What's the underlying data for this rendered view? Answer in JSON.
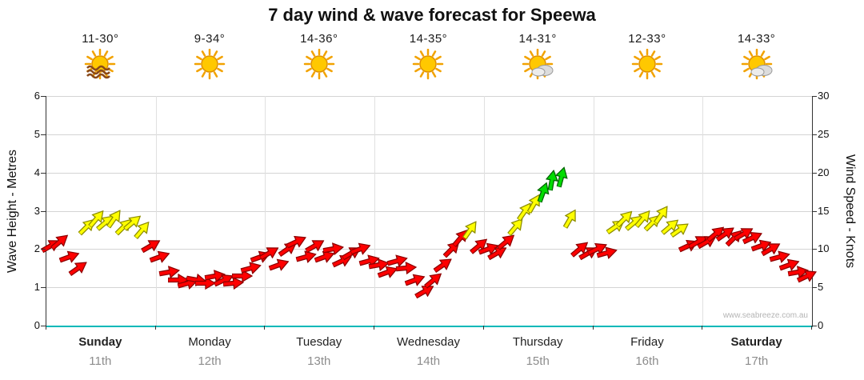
{
  "title": "7 day wind & wave forecast for Speewa",
  "watermark": "www.seabreeze.com.au",
  "axes": {
    "left_label": "Wave Height - Metres",
    "right_label": "Wind Speed - Knots",
    "left_ticks": [
      0,
      1,
      2,
      3,
      4,
      5,
      6
    ],
    "right_ticks": [
      0,
      5,
      10,
      15,
      20,
      25,
      30
    ]
  },
  "days": [
    {
      "name": "Sunday",
      "date": "11th",
      "temp": "11-30°",
      "icon": "sun-waves",
      "weekend": true
    },
    {
      "name": "Monday",
      "date": "12th",
      "temp": "9-34°",
      "icon": "sun",
      "weekend": false
    },
    {
      "name": "Tuesday",
      "date": "13th",
      "temp": "14-36°",
      "icon": "sun",
      "weekend": false
    },
    {
      "name": "Wednesday",
      "date": "14th",
      "temp": "14-35°",
      "icon": "sun",
      "weekend": false
    },
    {
      "name": "Thursday",
      "date": "15th",
      "temp": "14-31°",
      "icon": "sun-cloud",
      "weekend": false
    },
    {
      "name": "Friday",
      "date": "16th",
      "temp": "12-33°",
      "icon": "sun",
      "weekend": false
    },
    {
      "name": "Saturday",
      "date": "17th",
      "temp": "14-33°",
      "icon": "sun-cloud",
      "weekend": true
    }
  ],
  "chart_data": {
    "type": "wind-arrows",
    "title": "7 day wind & wave forecast for Speewa",
    "ylabel_left": "Wave Height - Metres",
    "ylabel_right": "Wind Speed - Knots",
    "ylim_left": [
      0,
      6
    ],
    "ylim_right": [
      0,
      30
    ],
    "grid": true,
    "points_per_day": 12,
    "colors": {
      "r": "#ff0000",
      "y": "#ffff00",
      "g": "#00dd00"
    },
    "stroke": {
      "r": "#8e0000",
      "y": "#8e8e00",
      "g": "#006600"
    },
    "series": [
      {
        "day": "Sunday",
        "knots": [
          10.5,
          11,
          9,
          7.5,
          13,
          14,
          13.5,
          14,
          13,
          13.5,
          12.5,
          10.5
        ],
        "rot": [
          -30,
          -40,
          -20,
          -35,
          -45,
          -50,
          -40,
          -55,
          -45,
          -40,
          -50,
          -30
        ],
        "color": [
          "r",
          "r",
          "r",
          "r",
          "y",
          "y",
          "y",
          "y",
          "y",
          "y",
          "y",
          "r"
        ]
      },
      {
        "day": "Monday",
        "knots": [
          9,
          7,
          6,
          5.5,
          6,
          5.5,
          6.5,
          6,
          5.5,
          6.5,
          7.5,
          9
        ],
        "rot": [
          -20,
          -10,
          0,
          -15,
          10,
          0,
          -10,
          -25,
          -5,
          0,
          -15,
          -20
        ],
        "color": [
          "r",
          "r",
          "r",
          "r",
          "r",
          "r",
          "r",
          "r",
          "r",
          "r",
          "r",
          "r"
        ]
      },
      {
        "day": "Tuesday",
        "knots": [
          9.5,
          8,
          10,
          11,
          9,
          10.5,
          9,
          10,
          8.5,
          9.5,
          10,
          8.5
        ],
        "rot": [
          -30,
          -20,
          -35,
          -25,
          -15,
          -30,
          -20,
          -10,
          -25,
          -30,
          -20,
          -15
        ],
        "color": [
          "r",
          "r",
          "r",
          "r",
          "r",
          "r",
          "r",
          "r",
          "r",
          "r",
          "r",
          "r"
        ]
      },
      {
        "day": "Wednesday",
        "knots": [
          8,
          7,
          8.5,
          7.5,
          6,
          4.5,
          6,
          8,
          10,
          11.5,
          12.5,
          10.5
        ],
        "rot": [
          -10,
          -20,
          -15,
          -5,
          -20,
          -30,
          -40,
          -35,
          -45,
          -50,
          -55,
          -40
        ],
        "color": [
          "r",
          "r",
          "r",
          "r",
          "r",
          "r",
          "r",
          "r",
          "r",
          "r",
          "y",
          "r"
        ]
      },
      {
        "day": "Thursday",
        "knots": [
          10,
          9.5,
          11,
          13,
          15,
          16,
          17.5,
          19,
          19.5,
          14,
          10,
          9.5
        ],
        "rot": [
          -20,
          -30,
          -40,
          -50,
          -55,
          -60,
          -70,
          -80,
          -75,
          -60,
          -40,
          -30
        ],
        "color": [
          "r",
          "r",
          "r",
          "y",
          "y",
          "y",
          "g",
          "g",
          "g",
          "y",
          "r",
          "r"
        ]
      },
      {
        "day": "Friday",
        "knots": [
          10,
          9.5,
          13,
          14,
          13.5,
          14,
          13.5,
          14.5,
          13,
          12.5,
          10.5,
          11
        ],
        "rot": [
          -25,
          -15,
          -35,
          -45,
          -40,
          -50,
          -45,
          -55,
          -40,
          -35,
          -25,
          -30
        ],
        "color": [
          "r",
          "r",
          "y",
          "y",
          "y",
          "y",
          "y",
          "y",
          "y",
          "y",
          "r",
          "r"
        ]
      },
      {
        "day": "Saturday",
        "knots": [
          11,
          12,
          12,
          11.5,
          12,
          11.5,
          10.5,
          10,
          9,
          8,
          7,
          6.5
        ],
        "rot": [
          -30,
          -40,
          -35,
          -45,
          -30,
          -25,
          -20,
          -30,
          -15,
          -20,
          -10,
          -25
        ],
        "color": [
          "r",
          "r",
          "r",
          "r",
          "r",
          "r",
          "r",
          "r",
          "r",
          "r",
          "r",
          "r"
        ]
      }
    ]
  }
}
